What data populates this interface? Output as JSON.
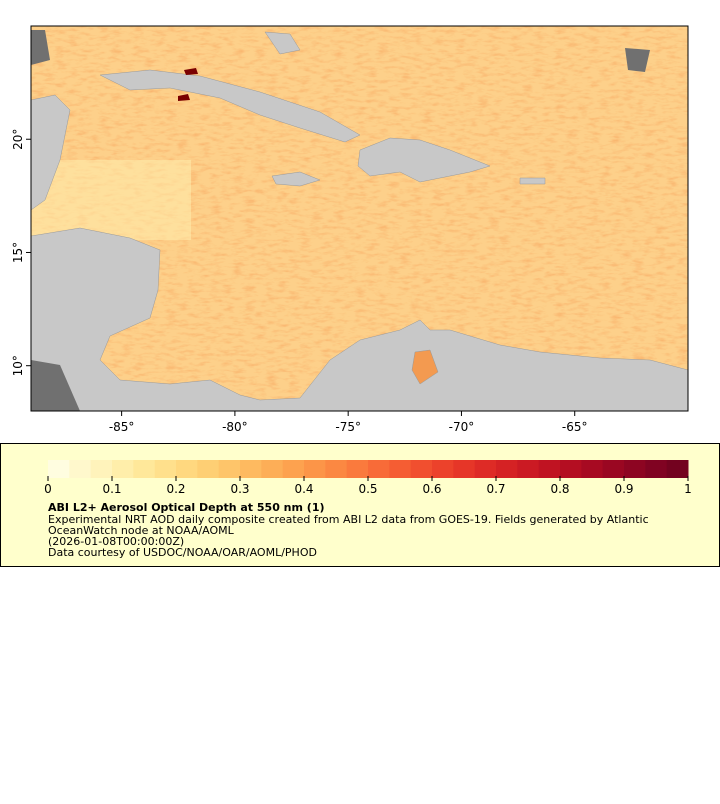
{
  "map": {
    "xlim": [
      -89,
      -60
    ],
    "ylim": [
      8,
      25
    ],
    "xticks": [
      {
        "value": -85,
        "label": "-85°"
      },
      {
        "value": -80,
        "label": "-80°"
      },
      {
        "value": -75,
        "label": "-75°"
      },
      {
        "value": -70,
        "label": "-70°"
      },
      {
        "value": -65,
        "label": "-65°"
      }
    ],
    "yticks": [
      {
        "value": 10,
        "label": "10°"
      },
      {
        "value": 15,
        "label": "15°"
      },
      {
        "value": 20,
        "label": "20°"
      }
    ]
  },
  "colorbar": {
    "range": [
      0,
      1
    ],
    "ticks": [
      0,
      0.1,
      0.2,
      0.3,
      0.4,
      0.5,
      0.6,
      0.7,
      0.8,
      0.9,
      1
    ],
    "colors": [
      "#fffde0",
      "#fff8cc",
      "#fff3bb",
      "#ffeeaa",
      "#ffe89a",
      "#ffe08c",
      "#ffd87f",
      "#fecf74",
      "#fec56a",
      "#feba60",
      "#fdae57",
      "#fda24f",
      "#fc9548",
      "#fb8842",
      "#fa7a3d",
      "#f86b38",
      "#f55d33",
      "#f14f2f",
      "#ec422b",
      "#e63628",
      "#de2b26",
      "#d52224",
      "#cb1a23",
      "#c01322",
      "#b40e22",
      "#a70a22",
      "#9a0722",
      "#8d0522",
      "#800322",
      "#73021f"
    ]
  },
  "legend": {
    "title": "ABI L2+ Aerosol Optical Depth at 550 nm (1)",
    "lines": [
      "Experimental NRT AOD daily composite created from ABI L2 data from GOES-19. Fields generated by Atlantic",
      "OceanWatch node at NOAA/AOML",
      "(2026-01-08T00:00:00Z)",
      "Data courtesy of USDOC/NOAA/OAR/AOML/PHOD"
    ]
  }
}
